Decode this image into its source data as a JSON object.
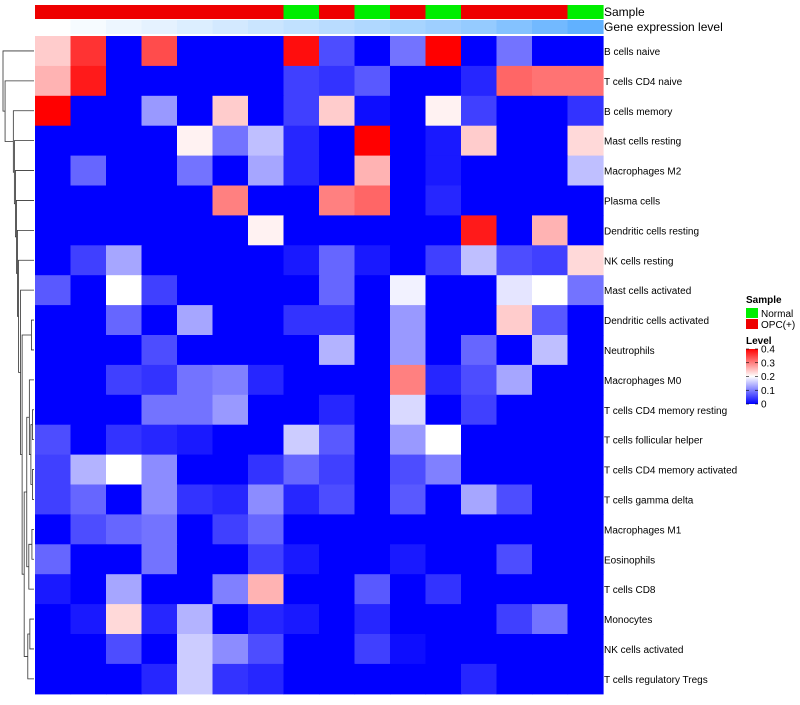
{
  "chart_data": {
    "type": "heatmap",
    "annotation_tracks": [
      {
        "name": "Sample",
        "categories": [
          "OPC",
          "OPC",
          "OPC",
          "OPC",
          "OPC",
          "OPC",
          "OPC",
          "Normal",
          "OPC",
          "Normal",
          "OPC",
          "Normal",
          "OPC",
          "OPC",
          "OPC",
          "Normal"
        ]
      },
      {
        "name": "Gene expression level",
        "values": [
          0.0,
          0.05,
          0.1,
          0.15,
          0.2,
          0.25,
          0.3,
          0.35,
          0.4,
          0.45,
          0.5,
          0.55,
          0.6,
          0.7,
          0.8,
          0.9
        ]
      }
    ],
    "rows": [
      "B cells naive",
      "T cells CD4 naive",
      "B cells memory",
      "Mast cells resting",
      "Macrophages M2",
      "Plasma cells",
      "Dendritic cells resting",
      "NK cells resting",
      "Mast cells activated",
      "Dendritic cells activated",
      "Neutrophils",
      "Macrophages M0",
      "T cells CD4 memory resting",
      "T cells follicular helper",
      "T cells CD4 memory activated",
      "T cells gamma delta",
      "Macrophages M1",
      "Eosinophils",
      "T cells CD8",
      "Monocytes",
      "NK cells activated",
      "T cells regulatory  Tregs"
    ],
    "n_columns": 16,
    "values": [
      [
        0.24,
        0.36,
        0.0,
        0.34,
        0.0,
        0.0,
        0.0,
        0.39,
        0.06,
        0.0,
        0.09,
        0.4,
        0.0,
        0.09,
        0.0,
        0.0
      ],
      [
        0.26,
        0.38,
        0.0,
        0.0,
        0.0,
        0.0,
        0.0,
        0.05,
        0.04,
        0.07,
        0.0,
        0.0,
        0.03,
        0.32,
        0.31,
        0.31
      ],
      [
        0.4,
        0.0,
        0.0,
        0.12,
        0.0,
        0.24,
        0.0,
        0.05,
        0.24,
        0.01,
        0.0,
        0.21,
        0.05,
        0.0,
        0.0,
        0.04
      ],
      [
        0.0,
        0.0,
        0.0,
        0.0,
        0.21,
        0.09,
        0.15,
        0.03,
        0.0,
        0.4,
        0.0,
        0.02,
        0.24,
        0.0,
        0.0,
        0.23
      ],
      [
        0.0,
        0.08,
        0.0,
        0.0,
        0.09,
        0.0,
        0.13,
        0.03,
        0.0,
        0.26,
        0.0,
        0.02,
        0.0,
        0.0,
        0.0,
        0.15
      ],
      [
        0.0,
        0.0,
        0.0,
        0.0,
        0.0,
        0.3,
        0.0,
        0.0,
        0.3,
        0.32,
        0.0,
        0.03,
        0.0,
        0.0,
        0.0,
        0.0
      ],
      [
        0.0,
        0.0,
        0.0,
        0.0,
        0.0,
        0.0,
        0.21,
        0.0,
        0.0,
        0.0,
        0.0,
        0.0,
        0.38,
        0.0,
        0.26,
        0.0
      ],
      [
        0.0,
        0.05,
        0.13,
        0.0,
        0.0,
        0.0,
        0.0,
        0.02,
        0.08,
        0.02,
        0.0,
        0.05,
        0.15,
        0.06,
        0.05,
        0.23
      ],
      [
        0.07,
        0.0,
        0.2,
        0.05,
        0.0,
        0.0,
        0.0,
        0.0,
        0.08,
        0.0,
        0.19,
        0.0,
        0.0,
        0.18,
        0.2,
        0.09
      ],
      [
        0.0,
        0.0,
        0.08,
        0.0,
        0.13,
        0.0,
        0.0,
        0.04,
        0.04,
        0.0,
        0.12,
        0.0,
        0.0,
        0.24,
        0.07,
        0.0
      ],
      [
        0.0,
        0.0,
        0.0,
        0.06,
        0.0,
        0.0,
        0.0,
        0.0,
        0.14,
        0.0,
        0.12,
        0.0,
        0.08,
        0.0,
        0.15,
        0.0
      ],
      [
        0.0,
        0.0,
        0.05,
        0.04,
        0.09,
        0.1,
        0.03,
        0.0,
        0.0,
        0.0,
        0.3,
        0.03,
        0.06,
        0.13,
        0.0,
        0.0
      ],
      [
        0.0,
        0.0,
        0.0,
        0.09,
        0.09,
        0.12,
        0.0,
        0.0,
        0.03,
        0.0,
        0.17,
        0.0,
        0.05,
        0.0,
        0.0,
        0.0
      ],
      [
        0.06,
        0.0,
        0.04,
        0.03,
        0.02,
        0.0,
        0.0,
        0.16,
        0.07,
        0.0,
        0.12,
        0.2,
        0.0,
        0.0,
        0.0,
        0.0
      ],
      [
        0.05,
        0.14,
        0.2,
        0.11,
        0.0,
        0.0,
        0.04,
        0.08,
        0.05,
        0.0,
        0.06,
        0.1,
        0.0,
        0.0,
        0.0,
        0.0
      ],
      [
        0.05,
        0.08,
        0.0,
        0.11,
        0.04,
        0.03,
        0.11,
        0.03,
        0.06,
        0.0,
        0.07,
        0.0,
        0.13,
        0.06,
        0.0,
        0.0
      ],
      [
        0.0,
        0.06,
        0.08,
        0.09,
        0.0,
        0.05,
        0.08,
        0.0,
        0.0,
        0.0,
        0.0,
        0.0,
        0.0,
        0.0,
        0.0,
        0.0
      ],
      [
        0.08,
        0.0,
        0.0,
        0.09,
        0.0,
        0.0,
        0.05,
        0.02,
        0.0,
        0.0,
        0.02,
        0.0,
        0.0,
        0.06,
        0.0,
        0.0
      ],
      [
        0.02,
        0.0,
        0.13,
        0.0,
        0.0,
        0.1,
        0.26,
        0.0,
        0.0,
        0.07,
        0.0,
        0.04,
        0.0,
        0.0,
        0.0,
        0.0
      ],
      [
        0.0,
        0.02,
        0.23,
        0.03,
        0.14,
        0.0,
        0.03,
        0.02,
        0.0,
        0.03,
        0.0,
        0.0,
        0.0,
        0.05,
        0.09,
        0.0
      ],
      [
        0.0,
        0.0,
        0.06,
        0.0,
        0.16,
        0.11,
        0.06,
        0.0,
        0.0,
        0.05,
        0.01,
        0.0,
        0.0,
        0.0,
        0.0,
        0.0
      ],
      [
        0.0,
        0.0,
        0.0,
        0.03,
        0.16,
        0.04,
        0.03,
        0.0,
        0.0,
        0.0,
        0.0,
        0.0,
        0.03,
        0.0,
        0.0,
        0.0
      ]
    ],
    "dendrogram_merges": [
      [
        12,
        13,
        0.3
      ],
      [
        14,
        15,
        0.3
      ],
      [
        -23,
        -24,
        0.6
      ],
      [
        11,
        -25,
        0.9
      ],
      [
        16,
        17,
        0.4
      ],
      [
        -27,
        18,
        1.0
      ],
      [
        -26,
        -28,
        1.4
      ],
      [
        19,
        20,
        0.8
      ],
      [
        -30,
        21,
        1.2
      ],
      [
        -29,
        -31,
        1.9
      ],
      [
        9,
        10,
        0.5
      ],
      [
        -32,
        -33,
        2.3
      ],
      [
        8,
        -34,
        2.6
      ],
      [
        7,
        -35,
        3.0
      ],
      [
        6,
        -36,
        3.2
      ],
      [
        5,
        -37,
        3.4
      ],
      [
        4,
        -38,
        3.6
      ],
      [
        3,
        -39,
        3.8
      ],
      [
        2,
        -40,
        4.0
      ],
      [
        1,
        -41,
        5.6
      ],
      [
        0,
        -42,
        6.0
      ]
    ],
    "color_scale": {
      "min": 0,
      "mid": 0.2,
      "max": 0.4,
      "low_color": "#0000ff",
      "mid_color": "#ffffff",
      "high_color": "#ff0000"
    },
    "legend": {
      "position": "right",
      "sample_title": "Sample",
      "sample_entries": [
        {
          "label": "Normal",
          "color": "#00ee00"
        },
        {
          "label": "OPC(+)",
          "color": "#ee0000"
        }
      ],
      "level_title": "Level",
      "level_ticks": [
        "0.4",
        "0.3",
        "0.2",
        "0.1",
        "0"
      ],
      "level_tick_values": [
        0.4,
        0.3,
        0.2,
        0.1,
        0
      ]
    },
    "track_colors": {
      "OPC": "#ee0000",
      "Normal": "#00ee00",
      "expr_low": "#ffffff",
      "expr_high": "#4fa8ff"
    }
  }
}
